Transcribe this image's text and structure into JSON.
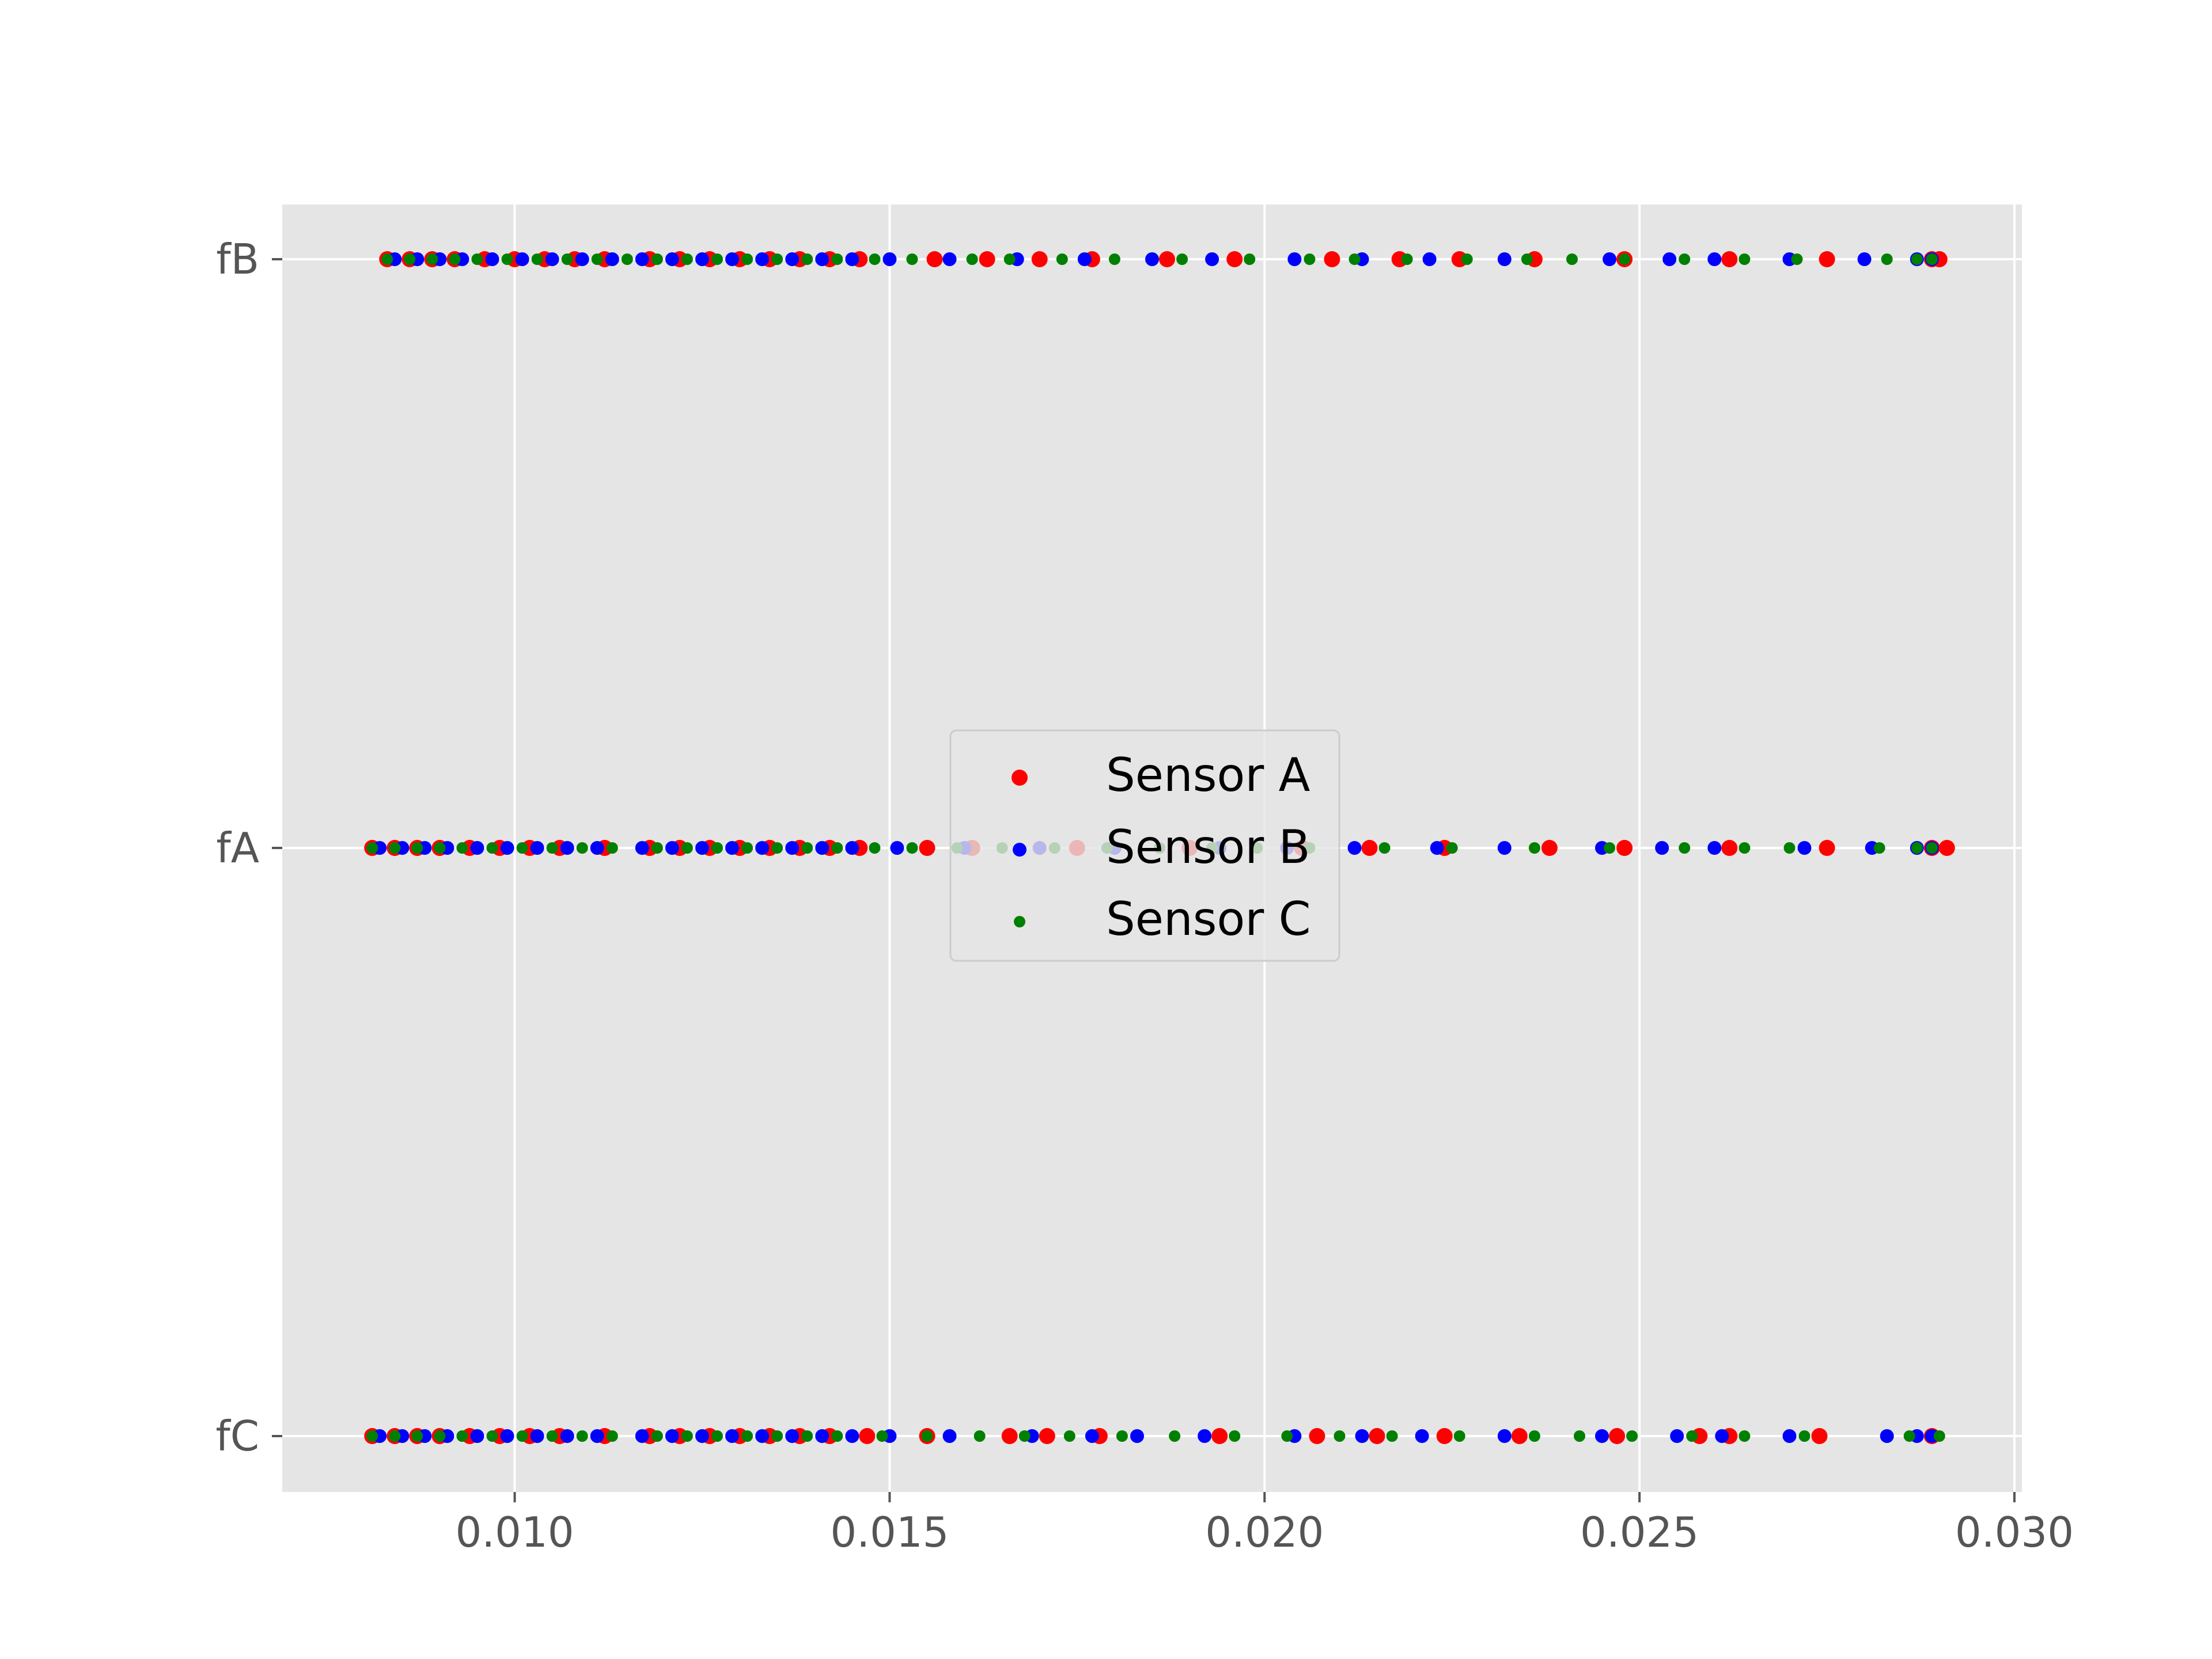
{
  "chart_data": {
    "type": "scatter",
    "title": "",
    "xlabel": "",
    "ylabel": "",
    "categories": [
      "fC",
      "fA",
      "fB"
    ],
    "xlim": [
      0.0069,
      0.0301
    ],
    "x_ticks": [
      "0.010",
      "0.015",
      "0.020",
      "0.025",
      "0.030"
    ],
    "x_tick_values": [
      0.01,
      0.015,
      0.02,
      0.025,
      0.03
    ],
    "y_ticks": [
      "fC",
      "fA",
      "fB"
    ],
    "grid": true,
    "background": "#e5e5e5",
    "legend_position": "center",
    "series": [
      {
        "name": "Sensor A",
        "color": "#ff0000",
        "points": [
          {
            "category": "fB",
            "x": [
              0.0083,
              0.0086,
              0.0089,
              0.0092,
              0.0096,
              0.01,
              0.0104,
              0.0108,
              0.0112,
              0.0118,
              0.0122,
              0.0126,
              0.013,
              0.0134,
              0.0138,
              0.0142,
              0.0146,
              0.0156,
              0.0163,
              0.017,
              0.0177,
              0.0187,
              0.0196,
              0.0209,
              0.0218,
              0.0226,
              0.0236,
              0.0248,
              0.0262,
              0.0275,
              0.0289,
              0.029
            ]
          },
          {
            "category": "fA",
            "x": [
              0.0081,
              0.0084,
              0.0087,
              0.009,
              0.0094,
              0.0098,
              0.0102,
              0.0106,
              0.0112,
              0.0118,
              0.0122,
              0.0126,
              0.013,
              0.0134,
              0.0138,
              0.0142,
              0.0146,
              0.0155,
              0.0161,
              0.0175,
              0.019,
              0.0205,
              0.0214,
              0.0224,
              0.0238,
              0.0248,
              0.0262,
              0.0275,
              0.0289,
              0.0291
            ]
          },
          {
            "category": "fC",
            "x": [
              0.0081,
              0.0084,
              0.0087,
              0.009,
              0.0094,
              0.0098,
              0.0102,
              0.0106,
              0.0112,
              0.0118,
              0.0122,
              0.0126,
              0.013,
              0.0134,
              0.0138,
              0.0142,
              0.0147,
              0.0155,
              0.0166,
              0.0171,
              0.0178,
              0.0194,
              0.0207,
              0.0215,
              0.0224,
              0.0234,
              0.0247,
              0.0258,
              0.0262,
              0.0274,
              0.0289
            ]
          }
        ]
      },
      {
        "name": "Sensor B",
        "color": "#0000ff",
        "points": [
          {
            "category": "fB",
            "x": [
              0.0084,
              0.0087,
              0.009,
              0.0093,
              0.0097,
              0.0101,
              0.0105,
              0.0109,
              0.0113,
              0.0117,
              0.0121,
              0.0125,
              0.0129,
              0.0133,
              0.0137,
              0.0141,
              0.0145,
              0.015,
              0.0158,
              0.0167,
              0.0176,
              0.0185,
              0.0193,
              0.0204,
              0.0213,
              0.0222,
              0.0232,
              0.0246,
              0.0254,
              0.026,
              0.027,
              0.028,
              0.0287,
              0.0289
            ]
          },
          {
            "category": "fA",
            "x": [
              0.0082,
              0.0085,
              0.0088,
              0.0091,
              0.0095,
              0.0099,
              0.0103,
              0.0107,
              0.0111,
              0.0117,
              0.0121,
              0.0125,
              0.0129,
              0.0133,
              0.0137,
              0.0141,
              0.0145,
              0.0151,
              0.016,
              0.017,
              0.018,
              0.0194,
              0.0203,
              0.0212,
              0.0223,
              0.0232,
              0.0245,
              0.0253,
              0.026,
              0.0272,
              0.0281,
              0.0287,
              0.0289
            ]
          },
          {
            "category": "fC",
            "x": [
              0.0082,
              0.0085,
              0.0088,
              0.0091,
              0.0095,
              0.0099,
              0.0103,
              0.0107,
              0.0111,
              0.0117,
              0.0121,
              0.0125,
              0.0129,
              0.0133,
              0.0137,
              0.0141,
              0.0145,
              0.015,
              0.0158,
              0.0169,
              0.0177,
              0.0183,
              0.0192,
              0.0204,
              0.0213,
              0.0221,
              0.0232,
              0.0245,
              0.0255,
              0.0261,
              0.027,
              0.0283,
              0.0287,
              0.0289
            ]
          }
        ]
      },
      {
        "name": "Sensor C",
        "color": "#008000",
        "points": [
          {
            "category": "fB",
            "x": [
              0.0083,
              0.0086,
              0.0089,
              0.0092,
              0.0095,
              0.0099,
              0.0103,
              0.0107,
              0.0111,
              0.0115,
              0.0119,
              0.0123,
              0.0127,
              0.0131,
              0.0135,
              0.0139,
              0.0143,
              0.0148,
              0.0153,
              0.0161,
              0.0166,
              0.0173,
              0.018,
              0.0189,
              0.0198,
              0.0206,
              0.0212,
              0.0219,
              0.0227,
              0.0235,
              0.0241,
              0.0248,
              0.0256,
              0.0264,
              0.0271,
              0.0283,
              0.0287,
              0.0289
            ]
          },
          {
            "category": "fA",
            "x": [
              0.0081,
              0.0084,
              0.0087,
              0.009,
              0.0093,
              0.0097,
              0.0101,
              0.0105,
              0.0109,
              0.0113,
              0.0119,
              0.0123,
              0.0127,
              0.0131,
              0.0135,
              0.0139,
              0.0143,
              0.0148,
              0.0153,
              0.0159,
              0.0165,
              0.0172,
              0.0179,
              0.0186,
              0.0193,
              0.0199,
              0.0206,
              0.0216,
              0.0225,
              0.0236,
              0.0246,
              0.0256,
              0.0264,
              0.027,
              0.0282,
              0.0287,
              0.0289
            ]
          },
          {
            "category": "fC",
            "x": [
              0.0081,
              0.0084,
              0.0087,
              0.009,
              0.0093,
              0.0097,
              0.0101,
              0.0105,
              0.0109,
              0.0113,
              0.0119,
              0.0123,
              0.0127,
              0.0131,
              0.0135,
              0.0139,
              0.0143,
              0.0149,
              0.0155,
              0.0162,
              0.0168,
              0.0174,
              0.0181,
              0.0188,
              0.0196,
              0.0203,
              0.021,
              0.0217,
              0.0226,
              0.0236,
              0.0242,
              0.0249,
              0.0257,
              0.0264,
              0.0272,
              0.0286,
              0.029
            ]
          }
        ]
      }
    ]
  }
}
